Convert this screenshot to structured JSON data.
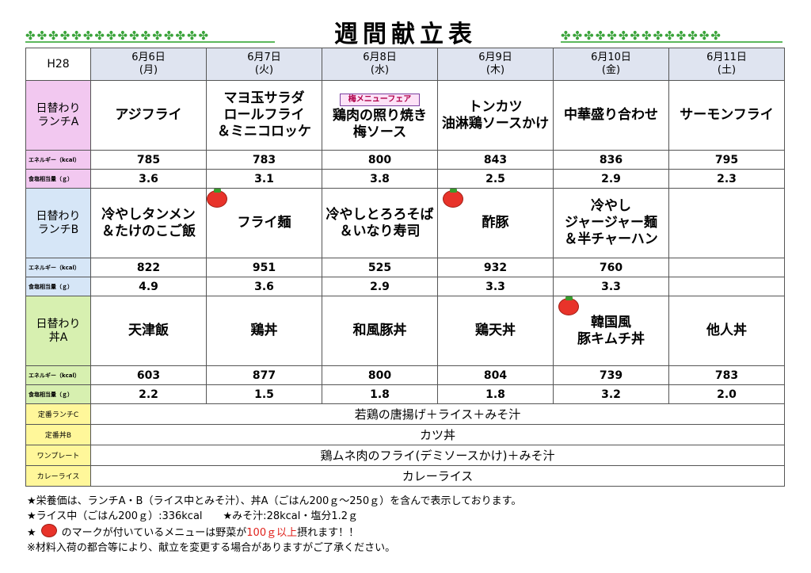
{
  "title": "週間献立表",
  "decor": {
    "clover_left": "✤✤✤✤✤✤✤✤✤✤✤✤✤✤✤✤",
    "clover_right": "✤✤✤✤✤✤✤✤✤✤✤✤✤✤"
  },
  "header": {
    "year": "H28",
    "days": [
      {
        "date": "6月6日",
        "dow": "(月)"
      },
      {
        "date": "6月7日",
        "dow": "(火)"
      },
      {
        "date": "6月8日",
        "dow": "(水)"
      },
      {
        "date": "6月9日",
        "dow": "(木)"
      },
      {
        "date": "6月10日",
        "dow": "(金)"
      },
      {
        "date": "6月11日",
        "dow": "(土)"
      }
    ]
  },
  "row_labels": {
    "energy": "エネルギー（kcal）",
    "salt": "食塩相当量（ｇ）"
  },
  "lunch_a": {
    "label": [
      "日替わり",
      "ランチA"
    ],
    "badge": "梅メニューフェア",
    "dishes": [
      [
        "アジフライ"
      ],
      [
        "マヨ玉サラダ",
        "ロールフライ",
        "＆ミニコロッケ"
      ],
      [
        "鶏肉の照り焼き",
        "梅ソース"
      ],
      [
        "トンカツ",
        "油淋鶏ソースかけ"
      ],
      [
        "中華盛り合わせ"
      ],
      [
        "サーモンフライ"
      ]
    ],
    "energy": [
      "785",
      "783",
      "800",
      "843",
      "836",
      "795"
    ],
    "salt": [
      "3.6",
      "3.1",
      "3.8",
      "2.5",
      "2.9",
      "2.3"
    ]
  },
  "lunch_b": {
    "label": [
      "日替わり",
      "ランチB"
    ],
    "dishes": [
      [
        "冷やしタンメン",
        "＆たけのこご飯"
      ],
      [
        "フライ麺"
      ],
      [
        "冷やしとろろそば",
        "＆いなり寿司"
      ],
      [
        "酢豚"
      ],
      [
        "冷やし",
        "ジャージャー麺",
        "＆半チャーハン"
      ],
      [
        ""
      ]
    ],
    "energy": [
      "822",
      "951",
      "525",
      "932",
      "760",
      ""
    ],
    "salt": [
      "4.9",
      "3.6",
      "2.9",
      "3.3",
      "3.3",
      ""
    ]
  },
  "don_a": {
    "label": [
      "日替わり",
      "丼A"
    ],
    "dishes": [
      [
        "天津飯"
      ],
      [
        "鶏丼"
      ],
      [
        "和風豚丼"
      ],
      [
        "鶏天丼"
      ],
      [
        "韓国風",
        "豚キムチ丼"
      ],
      [
        "他人丼"
      ]
    ],
    "energy": [
      "603",
      "877",
      "800",
      "804",
      "739",
      "783"
    ],
    "salt": [
      "2.2",
      "1.5",
      "1.8",
      "1.8",
      "3.2",
      "2.0"
    ]
  },
  "fixed": [
    {
      "label": "定番ランチC",
      "text": "若鶏の唐揚げ＋ライス＋みそ汁"
    },
    {
      "label": "定番丼B",
      "text": "カツ丼"
    },
    {
      "label": "ワンプレート",
      "text": "鶏ムネ肉のフライ(デミソースかけ)＋みそ汁"
    },
    {
      "label": "カレーライス",
      "text": "カレーライス"
    }
  ],
  "notes": {
    "line1": "★栄養価は、ランチA・B（ライス中とみそ汁）、丼A（ごはん200ｇ～250ｇ）を含んで表示しております。",
    "line2a": "★ライス中（ごはん200ｇ）:336kcal",
    "line2b": "★みそ汁:28kcal・塩分1.2ｇ",
    "line3_star": "★",
    "line3a": "のマークが付いているメニューは野菜が",
    "line3_red": "100ｇ以上",
    "line3b": "摂れます！！",
    "line4": "※材料入荷の都合等により、献立を変更する場合がありますがご了承ください。"
  },
  "colors": {
    "lunch_a": "#f2c8f0",
    "lunch_b": "#d6e6f7",
    "don_a": "#d7f0b0",
    "fixed": "#fff79a",
    "header": "#dfe4f0",
    "tomato": "#e8332a"
  }
}
